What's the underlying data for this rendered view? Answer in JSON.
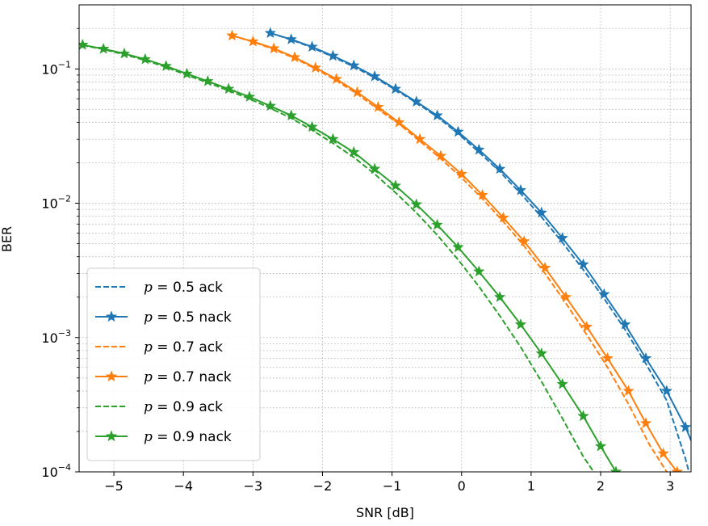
{
  "chart_data": {
    "type": "line",
    "title": "",
    "xlabel": "SNR [dB]",
    "ylabel": "BER",
    "xlim": [
      -5.5,
      3.3
    ],
    "ylim": [
      0.0001,
      0.3
    ],
    "yscale": "log",
    "grid": true,
    "legend_position": "lower-left",
    "x_ticks": [
      -5,
      -4,
      -3,
      -2,
      -1,
      0,
      1,
      2,
      3
    ],
    "x_tick_labels": [
      "−5",
      "−4",
      "−3",
      "−2",
      "−1",
      "0",
      "1",
      "2",
      "3"
    ],
    "y_ticks": [
      0.1,
      0.01,
      0.001,
      0.0001
    ],
    "y_tick_labels": [
      {
        "base": "10",
        "exp": "−1"
      },
      {
        "base": "10",
        "exp": "−2"
      },
      {
        "base": "10",
        "exp": "−3"
      },
      {
        "base": "10",
        "exp": "−4"
      }
    ],
    "series": [
      {
        "name": "p = 0.5 ack",
        "label_var": "p",
        "label_rest": " = 0.5 ack",
        "color": "#1f77b4",
        "style": "dashed",
        "marker": "none",
        "points": [
          [
            -2.75,
            0.185
          ],
          [
            -2.45,
            0.165
          ],
          [
            -2.15,
            0.144
          ],
          [
            -1.85,
            0.123
          ],
          [
            -1.55,
            0.104
          ],
          [
            -1.25,
            0.086
          ],
          [
            -0.95,
            0.07
          ],
          [
            -0.65,
            0.056
          ],
          [
            -0.35,
            0.044
          ],
          [
            -0.05,
            0.033
          ],
          [
            0.25,
            0.024
          ],
          [
            0.55,
            0.0172
          ],
          [
            0.85,
            0.0118
          ],
          [
            1.15,
            0.0079
          ],
          [
            1.45,
            0.0051
          ],
          [
            1.75,
            0.0032
          ],
          [
            2.05,
            0.00195
          ],
          [
            2.35,
            0.00115
          ],
          [
            2.65,
            0.00064
          ],
          [
            2.95,
            0.00034
          ],
          [
            3.22,
            0.000125
          ],
          [
            3.27,
            0.0001
          ]
        ]
      },
      {
        "name": "p = 0.5 nack",
        "label_var": "p",
        "label_rest": " = 0.5 nack",
        "color": "#1f77b4",
        "style": "solid",
        "marker": "star",
        "points": [
          [
            -2.75,
            0.185
          ],
          [
            -2.45,
            0.166
          ],
          [
            -2.15,
            0.146
          ],
          [
            -1.85,
            0.125
          ],
          [
            -1.55,
            0.106
          ],
          [
            -1.25,
            0.088
          ],
          [
            -0.95,
            0.071
          ],
          [
            -0.65,
            0.057
          ],
          [
            -0.35,
            0.045
          ],
          [
            -0.05,
            0.034
          ],
          [
            0.25,
            0.025
          ],
          [
            0.55,
            0.018
          ],
          [
            0.85,
            0.0125
          ],
          [
            1.15,
            0.0085
          ],
          [
            1.45,
            0.0055
          ],
          [
            1.75,
            0.0035
          ],
          [
            2.05,
            0.0021
          ],
          [
            2.35,
            0.00125
          ],
          [
            2.65,
            0.0007
          ],
          [
            2.95,
            0.0004
          ],
          [
            3.22,
            0.000215
          ],
          [
            3.45,
            0.000113
          ]
        ]
      },
      {
        "name": "p = 0.7 ack",
        "label_var": "p",
        "label_rest": " = 0.7 ack",
        "color": "#ff7f0e",
        "style": "dashed",
        "marker": "none",
        "points": [
          [
            -3.3,
            0.177
          ],
          [
            -3.0,
            0.159
          ],
          [
            -2.7,
            0.14
          ],
          [
            -2.4,
            0.12
          ],
          [
            -2.1,
            0.1
          ],
          [
            -1.8,
            0.082
          ],
          [
            -1.5,
            0.065
          ],
          [
            -1.2,
            0.05
          ],
          [
            -0.9,
            0.039
          ],
          [
            -0.6,
            0.029
          ],
          [
            -0.3,
            0.0215
          ],
          [
            0.0,
            0.0155
          ],
          [
            0.3,
            0.0108
          ],
          [
            0.6,
            0.0073
          ],
          [
            0.9,
            0.0048
          ],
          [
            1.2,
            0.003
          ],
          [
            1.5,
            0.0018
          ],
          [
            1.8,
            0.00105
          ],
          [
            2.1,
            0.0006
          ],
          [
            2.4,
            0.00032
          ],
          [
            2.7,
            0.00016
          ],
          [
            2.95,
            0.0001
          ]
        ]
      },
      {
        "name": "p = 0.7 nack",
        "label_var": "p",
        "label_rest": " = 0.7 nack",
        "color": "#ff7f0e",
        "style": "solid",
        "marker": "star",
        "points": [
          [
            -3.3,
            0.177
          ],
          [
            -3.0,
            0.16
          ],
          [
            -2.7,
            0.142
          ],
          [
            -2.4,
            0.122
          ],
          [
            -2.1,
            0.102
          ],
          [
            -1.8,
            0.084
          ],
          [
            -1.5,
            0.067
          ],
          [
            -1.2,
            0.052
          ],
          [
            -0.9,
            0.04
          ],
          [
            -0.6,
            0.03
          ],
          [
            -0.3,
            0.0225
          ],
          [
            0.0,
            0.0165
          ],
          [
            0.3,
            0.0115
          ],
          [
            0.6,
            0.0078
          ],
          [
            0.9,
            0.0052
          ],
          [
            1.2,
            0.0033
          ],
          [
            1.5,
            0.002
          ],
          [
            1.8,
            0.0012
          ],
          [
            2.1,
            0.0007
          ],
          [
            2.4,
            0.0004
          ],
          [
            2.65,
            0.00023
          ],
          [
            2.9,
            0.000137
          ],
          [
            3.1,
            0.0001
          ]
        ]
      },
      {
        "name": "p = 0.9 ack",
        "label_var": "p",
        "label_rest": " = 0.9 ack",
        "color": "#2ca02c",
        "style": "dashed",
        "marker": "none",
        "points": [
          [
            -5.45,
            0.15
          ],
          [
            -5.15,
            0.14
          ],
          [
            -4.85,
            0.128
          ],
          [
            -4.55,
            0.116
          ],
          [
            -4.25,
            0.103
          ],
          [
            -3.95,
            0.09
          ],
          [
            -3.65,
            0.079
          ],
          [
            -3.35,
            0.069
          ],
          [
            -3.05,
            0.06
          ],
          [
            -2.75,
            0.051
          ],
          [
            -2.45,
            0.043
          ],
          [
            -2.15,
            0.035
          ],
          [
            -1.85,
            0.028
          ],
          [
            -1.55,
            0.022
          ],
          [
            -1.25,
            0.0165
          ],
          [
            -0.95,
            0.012
          ],
          [
            -0.65,
            0.0085
          ],
          [
            -0.35,
            0.0058
          ],
          [
            -0.05,
            0.0038
          ],
          [
            0.25,
            0.0024
          ],
          [
            0.55,
            0.00145
          ],
          [
            0.85,
            0.00085
          ],
          [
            1.15,
            0.00047
          ],
          [
            1.45,
            0.00025
          ],
          [
            1.75,
            0.00013
          ],
          [
            1.9,
            0.0001
          ]
        ]
      },
      {
        "name": "p = 0.9 nack",
        "label_var": "p",
        "label_rest": " = 0.9 nack",
        "color": "#2ca02c",
        "style": "solid",
        "marker": "star",
        "points": [
          [
            -5.45,
            0.151
          ],
          [
            -5.15,
            0.141
          ],
          [
            -4.85,
            0.13
          ],
          [
            -4.55,
            0.118
          ],
          [
            -4.25,
            0.105
          ],
          [
            -3.95,
            0.092
          ],
          [
            -3.65,
            0.081
          ],
          [
            -3.35,
            0.071
          ],
          [
            -3.05,
            0.062
          ],
          [
            -2.75,
            0.053
          ],
          [
            -2.45,
            0.045
          ],
          [
            -2.15,
            0.037
          ],
          [
            -1.85,
            0.03
          ],
          [
            -1.55,
            0.024
          ],
          [
            -1.25,
            0.018
          ],
          [
            -0.95,
            0.0135
          ],
          [
            -0.65,
            0.0098
          ],
          [
            -0.35,
            0.0069
          ],
          [
            -0.05,
            0.0047
          ],
          [
            0.25,
            0.0031
          ],
          [
            0.55,
            0.002
          ],
          [
            0.85,
            0.00125
          ],
          [
            1.15,
            0.00076
          ],
          [
            1.45,
            0.00045
          ],
          [
            1.75,
            0.00026
          ],
          [
            2.0,
            0.000155
          ],
          [
            2.22,
            0.0001
          ]
        ]
      }
    ]
  }
}
